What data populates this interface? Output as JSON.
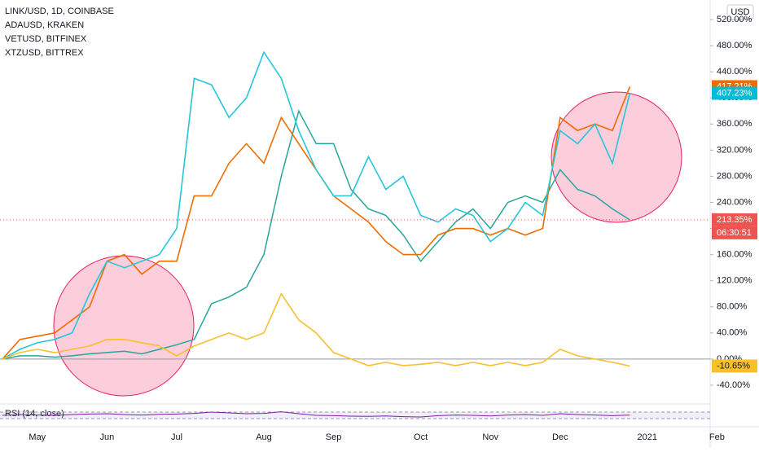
{
  "chart_data": {
    "type": "line",
    "currency": "USD",
    "categories": [
      "",
      "",
      "May",
      "",
      "",
      "",
      "Jun",
      "",
      "",
      "",
      "Jul",
      "",
      "",
      "",
      "",
      "Aug",
      "",
      "",
      "",
      "Sep",
      "",
      "",
      "",
      "",
      "Oct",
      "",
      "",
      "",
      "Nov",
      "",
      "",
      "",
      "Dec",
      "",
      "",
      "",
      "",
      "2021",
      "",
      "",
      "",
      "Feb",
      ""
    ],
    "series": [
      {
        "name": "LINK/USD, 1D, COINBASE",
        "color": "#26a69a",
        "tag_color": "#ef5350",
        "last_label": "213.35%",
        "countdown": "06:30:51",
        "values": [
          0,
          5,
          5,
          3,
          5,
          8,
          10,
          12,
          8,
          15,
          22,
          30,
          85,
          95,
          110,
          160,
          280,
          380,
          330,
          330,
          260,
          230,
          220,
          190,
          150,
          180,
          210,
          230,
          200,
          240,
          250,
          240,
          290,
          260,
          250,
          230,
          213.35,
          null,
          null,
          null,
          null,
          null,
          null
        ]
      },
      {
        "name": "ADAUSD, KRAKEN",
        "color": "#ef6c00",
        "tag_color": "#ef6c00",
        "last_label": "417.21%",
        "values": [
          0,
          30,
          35,
          40,
          60,
          80,
          150,
          160,
          130,
          150,
          150,
          250,
          250,
          300,
          330,
          300,
          370,
          330,
          290,
          250,
          230,
          210,
          180,
          160,
          160,
          190,
          200,
          200,
          190,
          200,
          190,
          200,
          370,
          350,
          360,
          350,
          417.21,
          null,
          null,
          null,
          null,
          null,
          null
        ]
      },
      {
        "name": "VETUSD, BITFINEX",
        "color": "#26c6da",
        "tag_color": "#00bcd4",
        "last_label": "407.23%",
        "values": [
          0,
          15,
          25,
          30,
          40,
          100,
          150,
          140,
          150,
          160,
          200,
          430,
          420,
          370,
          400,
          470,
          430,
          350,
          290,
          250,
          250,
          310,
          260,
          280,
          220,
          210,
          230,
          220,
          180,
          200,
          240,
          220,
          350,
          330,
          360,
          300,
          407.23,
          null,
          null,
          null,
          null,
          null,
          null
        ]
      },
      {
        "name": "XTZUSD, BITTREX",
        "color": "#f9c02a",
        "tag_color": "#f9c02a",
        "last_label": "-10.65%",
        "values": [
          0,
          10,
          15,
          10,
          15,
          20,
          30,
          30,
          25,
          20,
          5,
          20,
          30,
          40,
          30,
          40,
          100,
          60,
          40,
          10,
          0,
          -10,
          -5,
          -10,
          -8,
          -5,
          -10,
          -5,
          -10,
          -5,
          -10,
          -5,
          15,
          5,
          0,
          -5,
          -10.65,
          null,
          null,
          null,
          null,
          null,
          null
        ]
      }
    ],
    "ylim": [
      -65,
      550
    ],
    "yticks": [
      {
        "value": -40,
        "label": "-40.00%"
      },
      {
        "value": 0,
        "label": "0.00%"
      },
      {
        "value": 40,
        "label": "40.00%"
      },
      {
        "value": 80,
        "label": "80.00%"
      },
      {
        "value": 120,
        "label": "120.00%"
      },
      {
        "value": 160,
        "label": "160.00%"
      },
      {
        "value": 200,
        "label": "200.00%"
      },
      {
        "value": 240,
        "label": "240.00%"
      },
      {
        "value": 280,
        "label": "280.00%"
      },
      {
        "value": 320,
        "label": "320.00%"
      },
      {
        "value": 360,
        "label": "360.00%"
      },
      {
        "value": 400,
        "label": "400.00%"
      },
      {
        "value": 440,
        "label": "440.00%"
      },
      {
        "value": 480,
        "label": "480.00%"
      },
      {
        "value": 520,
        "label": "520.00%"
      }
    ],
    "rsi": {
      "name": "RSI (14, close)",
      "color": "#7b1fa2",
      "ylim": [
        0,
        100
      ],
      "bands": [
        70,
        30
      ],
      "values": [
        50,
        55,
        52,
        50,
        55,
        58,
        60,
        55,
        52,
        56,
        58,
        62,
        70,
        65,
        60,
        62,
        72,
        60,
        50,
        48,
        45,
        44,
        46,
        42,
        40,
        48,
        52,
        50,
        46,
        52,
        55,
        50,
        60,
        55,
        52,
        48,
        52,
        null,
        null,
        null,
        null,
        null,
        null
      ]
    }
  }
}
